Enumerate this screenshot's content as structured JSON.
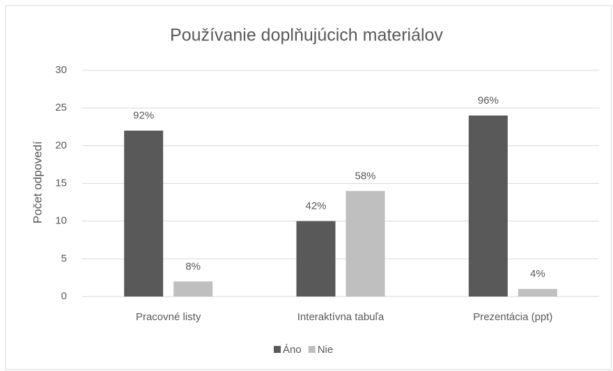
{
  "chart_data": {
    "type": "bar",
    "title": "Používanie doplňujúcich materiálov",
    "y_label": "Počet odpovedí",
    "categories": [
      "Pracovné listy",
      "Interaktívna tabuľa",
      "Prezentácia (ppt)"
    ],
    "series": [
      {
        "name": "Áno",
        "color": "#595959",
        "values": [
          22,
          10,
          24
        ],
        "labels": [
          "92%",
          "42%",
          "96%"
        ]
      },
      {
        "name": "Nie",
        "color": "#bfbfbf",
        "values": [
          2,
          14,
          1
        ],
        "labels": [
          "8%",
          "58%",
          "4%"
        ]
      }
    ],
    "ylim": [
      0,
      30
    ],
    "yticks": [
      0,
      5,
      10,
      15,
      20,
      25,
      30
    ],
    "grid": true,
    "legend": "bottom"
  }
}
